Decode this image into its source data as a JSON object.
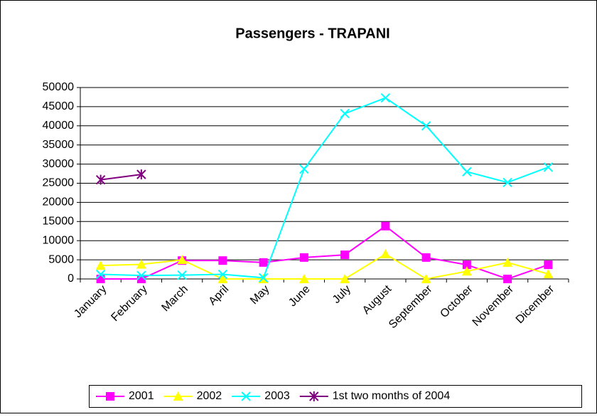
{
  "chart_data": {
    "type": "line",
    "title": "Passengers - TRAPANI",
    "categories": [
      "January",
      "February",
      "March",
      "April",
      "May",
      "June",
      "July",
      "August",
      "September",
      "October",
      "November",
      "Dicember"
    ],
    "series": [
      {
        "name": "2001",
        "color": "#ff00ff",
        "marker": "square",
        "values": [
          0,
          0,
          4800,
          4800,
          4300,
          5600,
          6300,
          13800,
          5600,
          3700,
          0,
          3700
        ]
      },
      {
        "name": "2002",
        "color": "#ffff00",
        "marker": "triangle",
        "values": [
          3500,
          3800,
          5000,
          0,
          0,
          0,
          0,
          6500,
          0,
          2000,
          4300,
          1300
        ]
      },
      {
        "name": "2003",
        "color": "#00ffff",
        "marker": "x",
        "values": [
          1200,
          900,
          1000,
          1200,
          300,
          28700,
          43200,
          47300,
          40000,
          28000,
          25200,
          29200
        ]
      },
      {
        "name": "1st two months of 2004",
        "color": "#800080",
        "marker": "star",
        "values": [
          25900,
          27300,
          null,
          null,
          null,
          null,
          null,
          null,
          null,
          null,
          null,
          null
        ]
      }
    ],
    "ylim": [
      0,
      50000
    ],
    "yticks": [
      0,
      5000,
      10000,
      15000,
      20000,
      25000,
      30000,
      35000,
      40000,
      45000,
      50000
    ],
    "grid": true,
    "legend": "bottom"
  }
}
